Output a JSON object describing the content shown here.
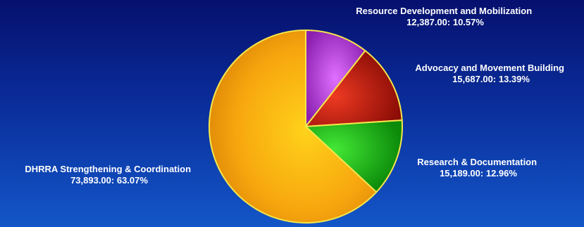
{
  "chart_data": {
    "type": "pie",
    "title": "",
    "slices": [
      {
        "name": "Resource Development and Mobilization",
        "value": 12387.0,
        "value_label": "12,387.00",
        "percent_label": "10.57%",
        "color": "#b23fd6"
      },
      {
        "name": "Advocacy and Movement  Building",
        "value": 15687.0,
        "value_label": "15,687.00",
        "percent_label": "13.39%",
        "color": "#c41a10"
      },
      {
        "name": "Research & Documentation",
        "value": 15189.0,
        "value_label": "15,189.00",
        "percent_label": "12.96%",
        "color": "#1fc218"
      },
      {
        "name": "DHRRA Strengthening & Coordination",
        "value": 73893.0,
        "value_label": "73,893.00:   63.07%",
        "percent_label": "",
        "color": "#f6a80e"
      }
    ]
  }
}
